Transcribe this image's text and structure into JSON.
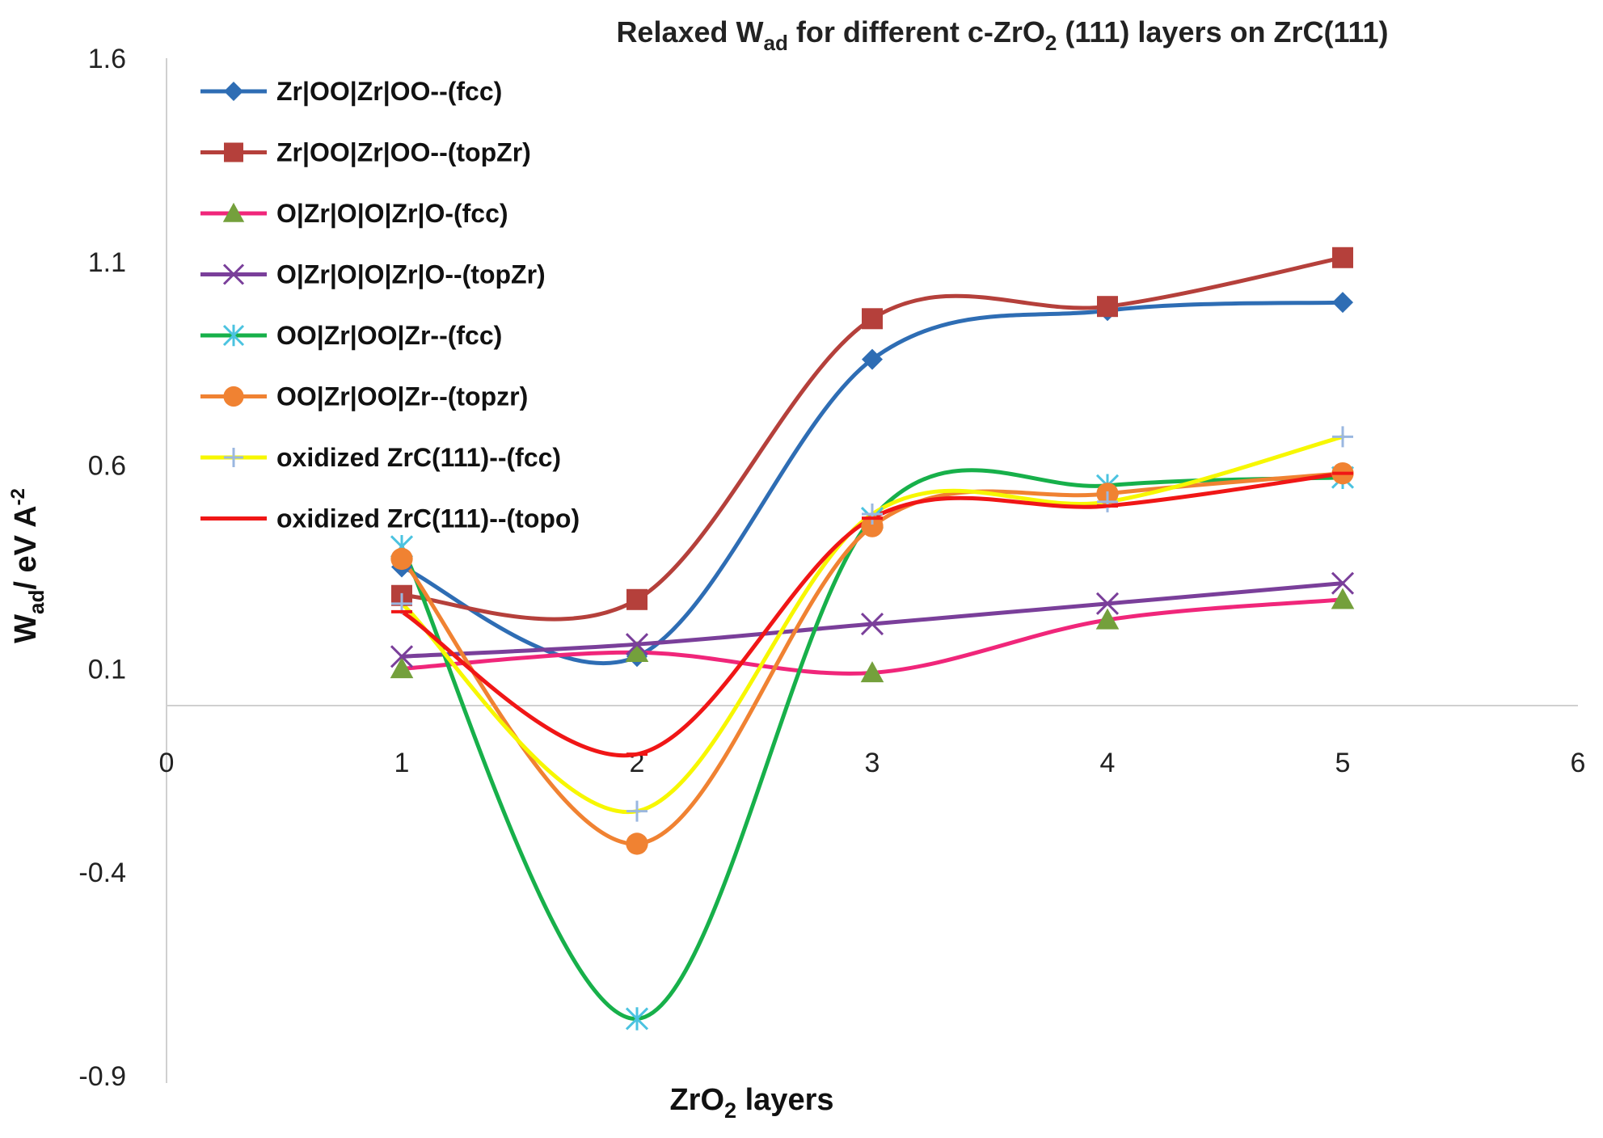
{
  "chart_data": {
    "type": "line",
    "title": "Relaxed W",
    "title_sub": "ad",
    "title_rest": " for different c-ZrO",
    "title_sub2": "2",
    "title_end": " (111) layers on ZrC(111)",
    "xlabel": "ZrO",
    "xlabel_sub": "2",
    "xlabel_rest": " layers",
    "ylabel": "W",
    "ylabel_sub": "ad",
    "ylabel_rest": "/ eV A",
    "ylabel_sup": "-2",
    "xlim": [
      0,
      6
    ],
    "ylim": [
      -0.9,
      1.6
    ],
    "xticks": [
      "0",
      "1",
      "2",
      "3",
      "4",
      "5",
      "6"
    ],
    "yticks": [
      "1.6",
      "1.1",
      "0.6",
      "0.1",
      "-0.4",
      "-0.9"
    ],
    "x": [
      1,
      2,
      3,
      4,
      5
    ],
    "series": [
      {
        "name": "Zr|OO|Zr|OO--(fcc)",
        "color": "#2E6DB4",
        "marker": "diamond",
        "values": [
          0.35,
          0.13,
          0.86,
          0.98,
          1.0
        ]
      },
      {
        "name": "Zr|OO|Zr|OO--(topZr)",
        "color": "#B5403B",
        "marker": "square",
        "values": [
          0.28,
          0.27,
          0.96,
          0.99,
          1.11
        ]
      },
      {
        "name": "O|Zr|O|O|Zr|O-(fcc)",
        "color": "#F0267A",
        "marker": "triangle",
        "values": [
          0.1,
          0.14,
          0.09,
          0.22,
          0.27
        ]
      },
      {
        "name": "O|Zr|O|O|Zr|O--(topZr)",
        "color": "#7A3F9A",
        "marker": "x",
        "values": [
          0.13,
          0.16,
          0.21,
          0.26,
          0.31
        ]
      },
      {
        "name": "OO|Zr|OO|Zr--(fcc)",
        "color": "#17B04A",
        "marker": "asterisk",
        "values": [
          0.4,
          -0.76,
          0.47,
          0.55,
          0.57
        ]
      },
      {
        "name": "OO|Zr|OO|Zr--(topzr)",
        "color": "#F08232",
        "marker": "circle",
        "values": [
          0.37,
          -0.33,
          0.45,
          0.53,
          0.58
        ]
      },
      {
        "name": "oxidized ZrC(111)--(fcc)",
        "color": "#F7F700",
        "marker": "plus",
        "values": [
          0.26,
          -0.25,
          0.48,
          0.51,
          0.67
        ]
      },
      {
        "name": "oxidized ZrC(111)--(topo)",
        "color": "#F01616",
        "marker": "dash",
        "values": [
          0.24,
          -0.11,
          0.47,
          0.5,
          0.58
        ]
      }
    ],
    "grid": false,
    "legend_position": "top-left"
  }
}
